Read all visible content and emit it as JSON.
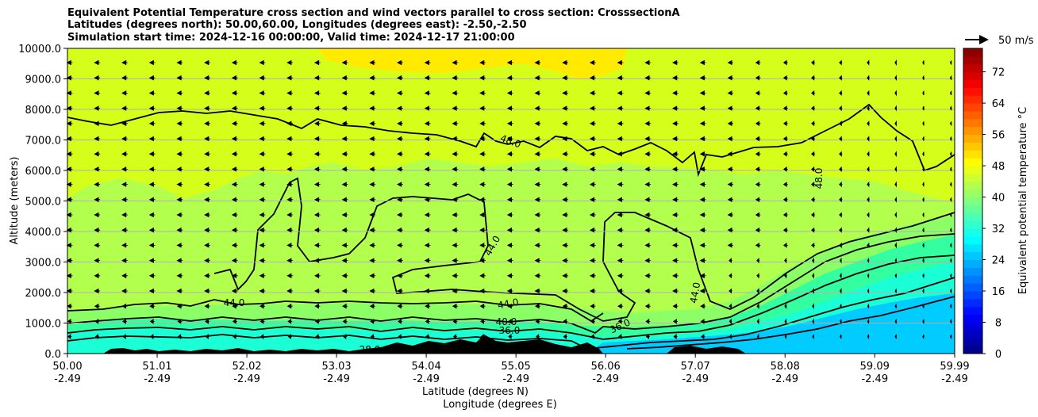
{
  "title": {
    "line1": "Equivalent Potential Temperature cross section and wind vectors parallel to cross section: CrosssectionA",
    "line2": "Latitudes (degrees north): 50.00,60.00, Longitudes (degrees east): -2.50,-2.50",
    "line3": "Simulation start time: 2024-12-16 00:00:00, Valid time: 2024-12-17 21:00:00"
  },
  "chart_data": {
    "type": "heatmap",
    "ylabel": "Altitude (meters)",
    "xlabel_lat": "Latitude (degrees N)",
    "xlabel_lon": "Longitude (degrees E)",
    "ylim": [
      0,
      10000
    ],
    "y_ticks": [
      "0.0",
      "1000.0",
      "2000.0",
      "3000.0",
      "4000.0",
      "5000.0",
      "6000.0",
      "7000.0",
      "8000.0",
      "9000.0",
      "10000.0"
    ],
    "x_ticks": [
      {
        "lat": "50.00",
        "lon": "-2.49"
      },
      {
        "lat": "51.01",
        "lon": "-2.49"
      },
      {
        "lat": "52.02",
        "lon": "-2.49"
      },
      {
        "lat": "53.03",
        "lon": "-2.49"
      },
      {
        "lat": "54.04",
        "lon": "-2.49"
      },
      {
        "lat": "55.05",
        "lon": "-2.49"
      },
      {
        "lat": "56.06",
        "lon": "-2.49"
      },
      {
        "lat": "57.07",
        "lon": "-2.49"
      },
      {
        "lat": "58.08",
        "lon": "-2.49"
      },
      {
        "lat": "59.09",
        "lon": "-2.49"
      },
      {
        "lat": "59.99",
        "lon": "-2.49"
      }
    ],
    "grid": "horizontal",
    "colorbar": {
      "label": "Equivalent potential temperature $^\\circ$C",
      "label_display": "Equivalent potential temperature °C",
      "ticks": [
        "0",
        "8",
        "16",
        "24",
        "32",
        "40",
        "48",
        "56",
        "64",
        "72"
      ],
      "range": [
        0,
        78
      ]
    },
    "contour_labels": [
      "48.0",
      "48.0",
      "44.0",
      "44.0",
      "44.0",
      "44.0",
      "40.0",
      "36.0",
      "36.0",
      "28.0"
    ],
    "wind_key": "50 m/s",
    "wind_direction": "toward-left",
    "colors": {
      "theta_24": "#00ccff",
      "theta_32": "#1affd5",
      "theta_36": "#33ffa0",
      "theta_40": "#8cff66",
      "theta_44": "#b2ff4d",
      "theta_48": "#d5ff1a",
      "theta_50": "#ffea00",
      "terrain": "#000000"
    }
  }
}
